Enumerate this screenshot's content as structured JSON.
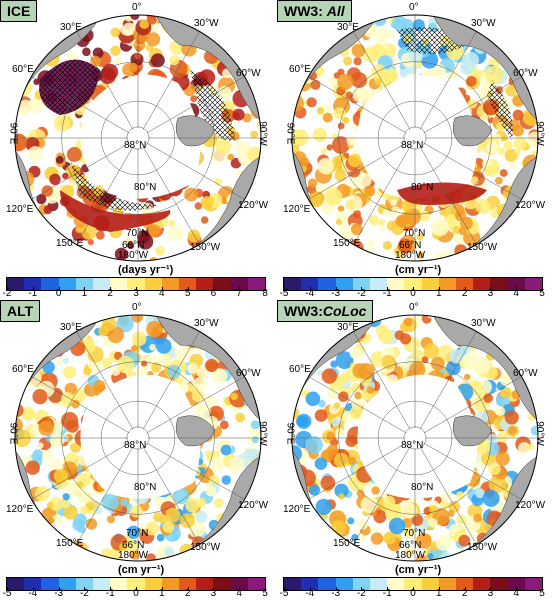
{
  "colors": {
    "scale": [
      "#2b1a6b",
      "#1f2fb0",
      "#1f63e0",
      "#2fa0f0",
      "#7fd3f5",
      "#c8ecf5",
      "#fffcc8",
      "#ffef7a",
      "#f9cf3c",
      "#f39a24",
      "#e25a1c",
      "#b51d17",
      "#7c0e1a",
      "#6a0a4a",
      "#8a1a7a"
    ],
    "land": "#a9a9a9",
    "tag_bg": "#b8d4b6"
  },
  "panels": [
    {
      "id": "ice",
      "title": "ICE",
      "title_italic": "",
      "unit": "(days yr⁻¹)",
      "ticks": [
        "-2",
        "-1",
        "0",
        "1",
        "2",
        "3",
        "4",
        "5",
        "6",
        "7",
        "8"
      ],
      "labels": {
        "lon0": "0°",
        "lon30": "30°W",
        "lon60w": "60°W",
        "lon90w": "90°W",
        "lon120w": "120°W",
        "lon150w": "150°W",
        "lon180": "180°W",
        "lon150e": "150°E",
        "lon120e": "120°E",
        "lon90e": "90°E",
        "lon60e": "60°E",
        "lon30e": "30°E",
        "lat88": "88°N",
        "lat80": "80°N",
        "lat70": "70°N",
        "lat66": "66°N"
      }
    },
    {
      "id": "ww3-all",
      "title": "WW3: ",
      "title_italic": "All",
      "unit": "(cm yr⁻¹)",
      "ticks": [
        "-5",
        "-4",
        "-3",
        "-2",
        "-1",
        "0",
        "1",
        "2",
        "3",
        "4",
        "5"
      ],
      "labels": {
        "lon0": "0°",
        "lon30": "30°W",
        "lon60w": "60°W",
        "lon90w": "90°W",
        "lon120w": "120°W",
        "lon150w": "150°W",
        "lon180": "180°W",
        "lon150e": "150°E",
        "lon120e": "120°E",
        "lon90e": "90°E",
        "lon60e": "60°E",
        "lon30e": "30°E",
        "lat88": "88°N",
        "lat80": "80°N",
        "lat70": "70°N",
        "lat66": "66°N"
      }
    },
    {
      "id": "alt",
      "title": "ALT",
      "title_italic": "",
      "unit": "(cm yr⁻¹)",
      "ticks": [
        "-5",
        "-4",
        "-3",
        "-2",
        "-1",
        "0",
        "1",
        "2",
        "3",
        "4",
        "5"
      ],
      "labels": {
        "lon0": "0°",
        "lon30": "30°W",
        "lon60w": "60°W",
        "lon90w": "90°W",
        "lon120w": "120°W",
        "lon150w": "150°W",
        "lon180": "180°W",
        "lon150e": "150°E",
        "lon120e": "120°E",
        "lon90e": "90°E",
        "lon60e": "60°E",
        "lon30e": "30°E",
        "lat88": "88°N",
        "lat80": "80°N",
        "lat70": "70°N",
        "lat66": "66°N"
      }
    },
    {
      "id": "ww3-coloc",
      "title": "WW3:",
      "title_italic": "CoLoc",
      "unit": "(cm yr⁻¹)",
      "ticks": [
        "-5",
        "-4",
        "-3",
        "-2",
        "-1",
        "0",
        "1",
        "2",
        "3",
        "4",
        "5"
      ],
      "labels": {
        "lon0": "0°",
        "lon30": "30°W",
        "lon60w": "60°W",
        "lon90w": "90°W",
        "lon120w": "120°W",
        "lon150w": "150°W",
        "lon180": "180°W",
        "lon150e": "150°E",
        "lon120e": "120°E",
        "lon90e": "90°E",
        "lon60e": "60°E",
        "lon30e": "30°E",
        "lat88": "88°N",
        "lat80": "80°N",
        "lat70": "70°N",
        "lat66": "66°N"
      }
    }
  ]
}
